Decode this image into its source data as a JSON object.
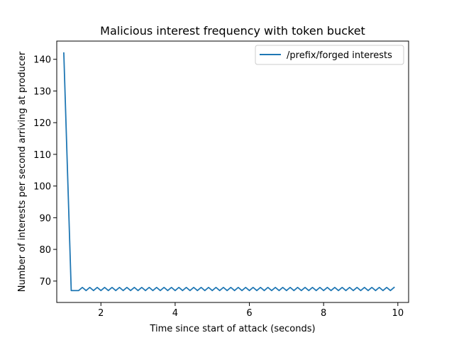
{
  "chart_data": {
    "type": "line",
    "title": "Malicious interest frequency with token bucket",
    "xlabel": "Time since start of attack (seconds)",
    "ylabel": "Number of interests per second arriving at producer",
    "xlim": [
      0.81,
      10.29
    ],
    "ylim": [
      63.25,
      145.75
    ],
    "xticks": [
      2,
      4,
      6,
      8,
      10
    ],
    "yticks": [
      70,
      80,
      90,
      100,
      110,
      120,
      130,
      140
    ],
    "grid": false,
    "legend_position": "upper right",
    "series": [
      {
        "name": "/prefix/forged interests",
        "color": "#1f77b4",
        "x": [
          1.0,
          1.2,
          1.4,
          1.5,
          1.6,
          1.7,
          1.8,
          1.9,
          2.0,
          2.1,
          2.2,
          2.3,
          2.4,
          2.5,
          2.6,
          2.7,
          2.8,
          2.9,
          3.0,
          3.1,
          3.2,
          3.3,
          3.4,
          3.5,
          3.6,
          3.7,
          3.8,
          3.9,
          4.0,
          4.1,
          4.2,
          4.3,
          4.4,
          4.5,
          4.6,
          4.7,
          4.8,
          4.9,
          5.0,
          5.1,
          5.2,
          5.3,
          5.4,
          5.5,
          5.6,
          5.7,
          5.8,
          5.9,
          6.0,
          6.1,
          6.2,
          6.3,
          6.4,
          6.5,
          6.6,
          6.7,
          6.8,
          6.9,
          7.0,
          7.1,
          7.2,
          7.3,
          7.4,
          7.5,
          7.6,
          7.7,
          7.8,
          7.9,
          8.0,
          8.1,
          8.2,
          8.3,
          8.4,
          8.5,
          8.6,
          8.7,
          8.8,
          8.9,
          9.0,
          9.1,
          9.2,
          9.3,
          9.4,
          9.5,
          9.6,
          9.7,
          9.8,
          9.9
        ],
        "y": [
          142,
          67,
          67,
          68,
          67,
          68,
          67,
          68,
          67,
          68,
          67,
          68,
          67,
          68,
          67,
          68,
          67,
          68,
          67,
          68,
          67,
          68,
          67,
          68,
          67,
          68,
          67,
          68,
          67,
          68,
          67,
          68,
          67,
          68,
          67,
          68,
          67,
          68,
          67,
          68,
          67,
          68,
          67,
          68,
          67,
          68,
          67,
          68,
          67,
          68,
          67,
          68,
          67,
          68,
          67,
          68,
          67,
          68,
          67,
          68,
          67,
          68,
          67,
          68,
          67,
          68,
          67,
          68,
          67,
          68,
          67,
          68,
          67,
          68,
          67,
          68,
          67,
          68,
          67,
          68,
          67,
          68,
          67,
          68,
          67,
          68,
          67,
          68
        ]
      }
    ]
  }
}
